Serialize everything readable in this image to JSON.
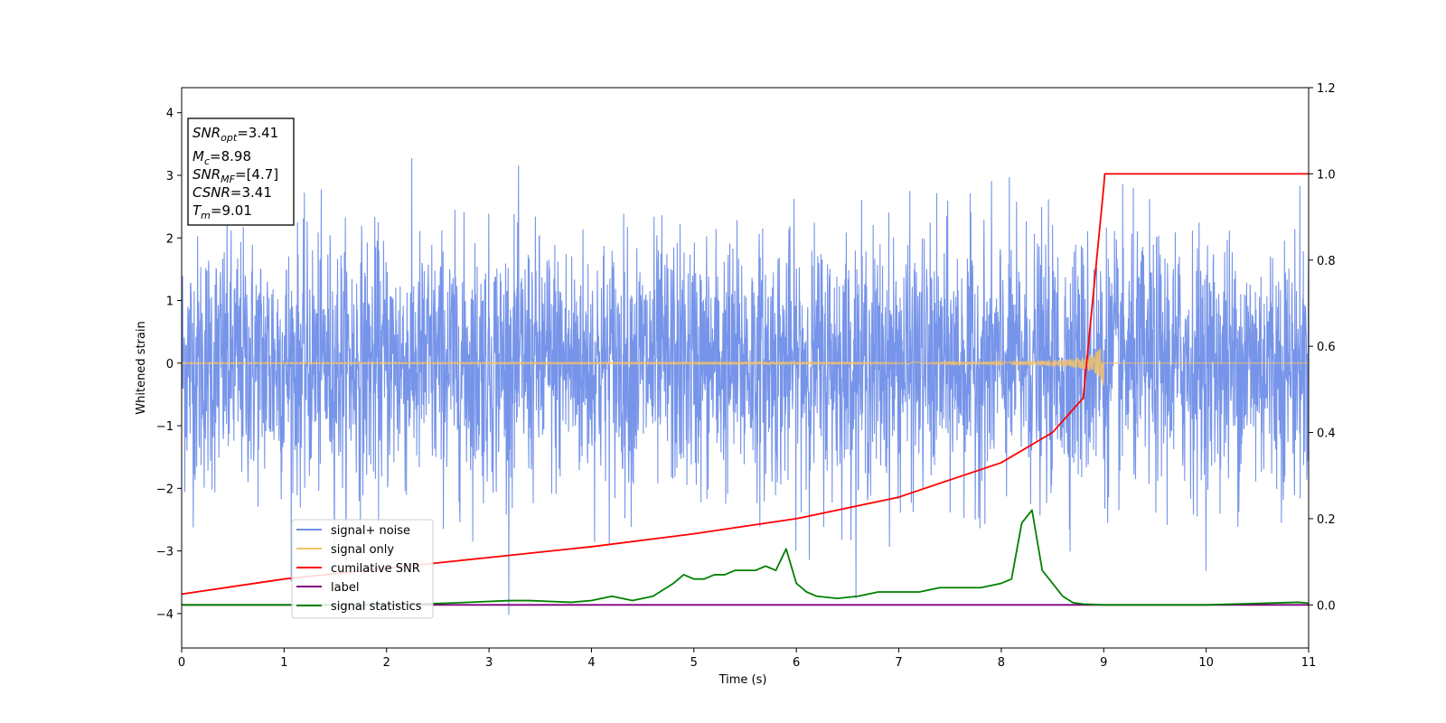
{
  "chart_data": {
    "type": "line",
    "xlabel": "Time (s)",
    "ylabel": "Whitened strain",
    "xlim": [
      0,
      11
    ],
    "ylim_left": [
      -4.55,
      4.4
    ],
    "ylim_right": [
      -0.1,
      1.2
    ],
    "x_ticks": [
      "0",
      "1",
      "2",
      "3",
      "4",
      "5",
      "6",
      "7",
      "8",
      "9",
      "10",
      "11"
    ],
    "y_ticks_left": [
      "−4",
      "−3",
      "−2",
      "−1",
      "0",
      "1",
      "2",
      "3",
      "4"
    ],
    "y_ticks_right": [
      "0.0",
      "0.2",
      "0.4",
      "0.6",
      "0.8",
      "1.0",
      "1.2"
    ],
    "legend_position": "lower-left",
    "info_box": {
      "snr_opt": {
        "base": "SNR",
        "sub": "opt",
        "value": "=3.41"
      },
      "mc": {
        "base": "M",
        "sub": "c",
        "value": "=8.98"
      },
      "snr_mf": {
        "base": "SNR",
        "sub": "MF",
        "value": "=[4.7]"
      },
      "csnr": {
        "base": "CSNR",
        "value": "=3.41"
      },
      "tm": {
        "base": "T",
        "sub": "m",
        "value": "=9.01"
      }
    },
    "series": [
      {
        "name": "signal+ noise",
        "color": "#6f8ee8",
        "axis": "left",
        "description_noise_std": 1.0,
        "x_range": [
          0,
          11
        ]
      },
      {
        "name": "signal only",
        "color": "#f5c26b",
        "axis": "left",
        "chirp_merger_time": 9.0,
        "chirp_peak_amplitude": 0.4
      },
      {
        "name": "cumilative SNR",
        "color": "#ff0000",
        "axis": "right",
        "x": [
          0,
          1,
          2,
          3,
          4,
          5,
          6,
          7,
          8,
          8.5,
          8.8,
          9.0,
          9.01,
          11
        ],
        "y": [
          0.025,
          0.06,
          0.085,
          0.11,
          0.135,
          0.165,
          0.2,
          0.25,
          0.33,
          0.4,
          0.48,
          0.97,
          1.0,
          1.0
        ]
      },
      {
        "name": "label",
        "color": "#800080",
        "axis": "right",
        "x": [
          0,
          11
        ],
        "y": [
          0.0,
          0.0
        ]
      },
      {
        "name": "signal statistics",
        "color": "#008000",
        "axis": "right",
        "x": [
          0,
          2,
          2.6,
          3,
          3.2,
          3.4,
          3.6,
          3.8,
          4.0,
          4.2,
          4.4,
          4.6,
          4.8,
          4.9,
          5.0,
          5.1,
          5.2,
          5.3,
          5.4,
          5.5,
          5.6,
          5.7,
          5.8,
          5.9,
          6.0,
          6.1,
          6.2,
          6.4,
          6.6,
          6.8,
          7.0,
          7.2,
          7.4,
          7.6,
          7.8,
          8.0,
          8.1,
          8.2,
          8.3,
          8.4,
          8.5,
          8.6,
          8.7,
          8.8,
          9.0,
          10.0,
          10.9,
          11.0
        ],
        "y": [
          0.0,
          0.0,
          0.004,
          0.008,
          0.01,
          0.01,
          0.008,
          0.006,
          0.01,
          0.02,
          0.01,
          0.02,
          0.05,
          0.07,
          0.06,
          0.06,
          0.07,
          0.07,
          0.08,
          0.08,
          0.08,
          0.09,
          0.08,
          0.13,
          0.05,
          0.03,
          0.02,
          0.015,
          0.02,
          0.03,
          0.03,
          0.03,
          0.04,
          0.04,
          0.04,
          0.05,
          0.06,
          0.19,
          0.22,
          0.08,
          0.05,
          0.02,
          0.005,
          0.002,
          0.0,
          0.0,
          0.006,
          0.004
        ]
      }
    ]
  }
}
